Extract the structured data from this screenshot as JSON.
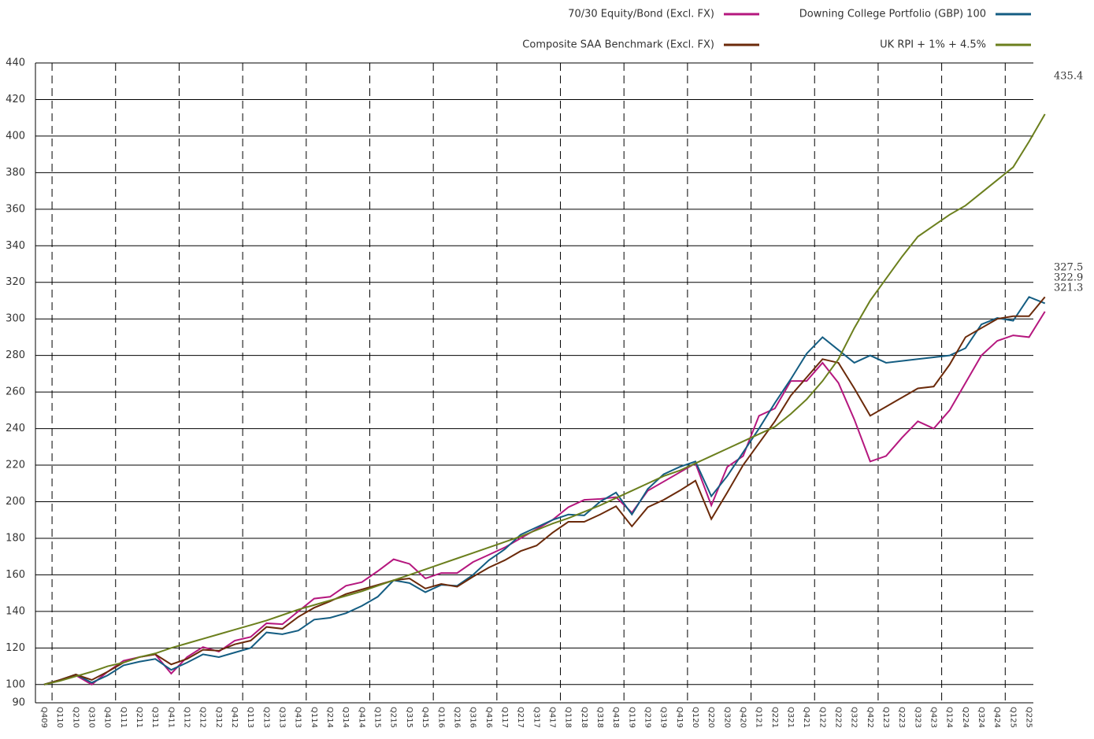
{
  "chart_data": {
    "type": "line",
    "categories": [
      "Q409",
      "Q110",
      "Q210",
      "Q310",
      "Q410",
      "Q111",
      "Q211",
      "Q311",
      "Q411",
      "Q112",
      "Q212",
      "Q312",
      "Q412",
      "Q113",
      "Q213",
      "Q313",
      "Q413",
      "Q114",
      "Q214",
      "Q314",
      "Q414",
      "Q115",
      "Q215",
      "Q315",
      "Q415",
      "Q116",
      "Q216",
      "Q316",
      "Q416",
      "Q117",
      "Q217",
      "Q317",
      "Q417",
      "Q118",
      "Q218",
      "Q318",
      "Q418",
      "Q119",
      "Q219",
      "Q319",
      "Q419",
      "Q120",
      "Q220",
      "Q320",
      "Q420",
      "Q121",
      "Q221",
      "Q321",
      "Q421",
      "Q122",
      "Q222",
      "Q322",
      "Q422",
      "Q123",
      "Q223",
      "Q323",
      "Q423",
      "Q124",
      "Q224",
      "Q324",
      "Q424",
      "Q125",
      "Q225",
      null
    ],
    "series": [
      {
        "name": "70/30 Equity/Bond (Excl. FX)",
        "color": "#b5177e",
        "values": [
          100,
          102.5,
          105,
          100,
          107,
          113,
          115,
          116.5,
          106,
          115,
          120.5,
          118,
          124,
          126,
          133.5,
          133,
          140,
          147,
          148,
          154,
          156,
          162,
          168.5,
          166,
          158,
          161,
          161,
          167,
          171,
          175,
          180,
          185,
          190,
          197,
          201,
          201.5,
          202.5,
          194,
          206,
          211,
          216,
          221,
          198,
          219,
          225,
          247,
          251,
          266,
          266,
          276,
          265,
          245,
          222,
          225,
          235,
          244,
          240,
          250,
          265,
          280,
          288,
          291,
          290,
          304
        ]
      },
      {
        "name": "Downing College Portfolio (GBP) 100",
        "color": "#145d82",
        "values": [
          100,
          102.5,
          105.5,
          101,
          105,
          110.5,
          112.5,
          114,
          108,
          112,
          116.5,
          115,
          117.5,
          120,
          128.5,
          127.5,
          129.5,
          135.5,
          136.5,
          139,
          143,
          148,
          157,
          155.5,
          150.5,
          154.5,
          154,
          160,
          168,
          174,
          182,
          186,
          190,
          193,
          192.5,
          200,
          205,
          193,
          207,
          215,
          219,
          222,
          203,
          214,
          227,
          240,
          254,
          267,
          281,
          290,
          283,
          276,
          280,
          276,
          277,
          278,
          279,
          280,
          284,
          297,
          300.5,
          299,
          312,
          308.5
        ]
      },
      {
        "name": "Composite SAA Benchmark (Excl. FX)",
        "color": "#6b2a0a",
        "values": [
          100,
          102.5,
          105.5,
          102.5,
          107,
          112,
          115,
          116.5,
          111,
          114,
          119,
          118.5,
          122,
          124,
          131.5,
          130.5,
          137,
          142,
          145.5,
          149.5,
          152,
          154.5,
          157,
          158,
          152.5,
          155,
          153.5,
          159,
          164,
          168,
          173,
          176,
          183,
          189,
          189,
          193,
          197.5,
          186.5,
          197,
          201,
          206,
          211.5,
          190.5,
          205,
          220,
          232,
          244,
          258,
          268,
          278,
          276,
          262,
          247,
          252,
          257,
          262,
          263,
          275,
          290,
          295,
          300,
          301.5,
          301.5,
          312
        ]
      },
      {
        "name": "UK RPI + 1% + 4.5%",
        "color": "#6b7f1d",
        "values": [
          100,
          102,
          104.5,
          107,
          110,
          112,
          115,
          117,
          120,
          122.5,
          125,
          127.5,
          130,
          132.5,
          135,
          138,
          141,
          143.5,
          146,
          148.5,
          151,
          154,
          157,
          160,
          163,
          166,
          169,
          172,
          175,
          178,
          181,
          184.5,
          188,
          191,
          194.5,
          198,
          202,
          206,
          210,
          214,
          217,
          221,
          225,
          229,
          233,
          237,
          241,
          248,
          256,
          266,
          278,
          295,
          310,
          322,
          334,
          345,
          351,
          357,
          362,
          369,
          376,
          383,
          397,
          412
        ]
      }
    ],
    "annotations": [
      "435.4",
      "322.9",
      "327.5",
      "321.3"
    ],
    "ylim": [
      90,
      440
    ],
    "yticks": [
      90,
      100,
      120,
      140,
      160,
      180,
      200,
      220,
      240,
      260,
      280,
      300,
      320,
      340,
      360,
      380,
      400,
      420,
      440
    ],
    "grid": true
  }
}
